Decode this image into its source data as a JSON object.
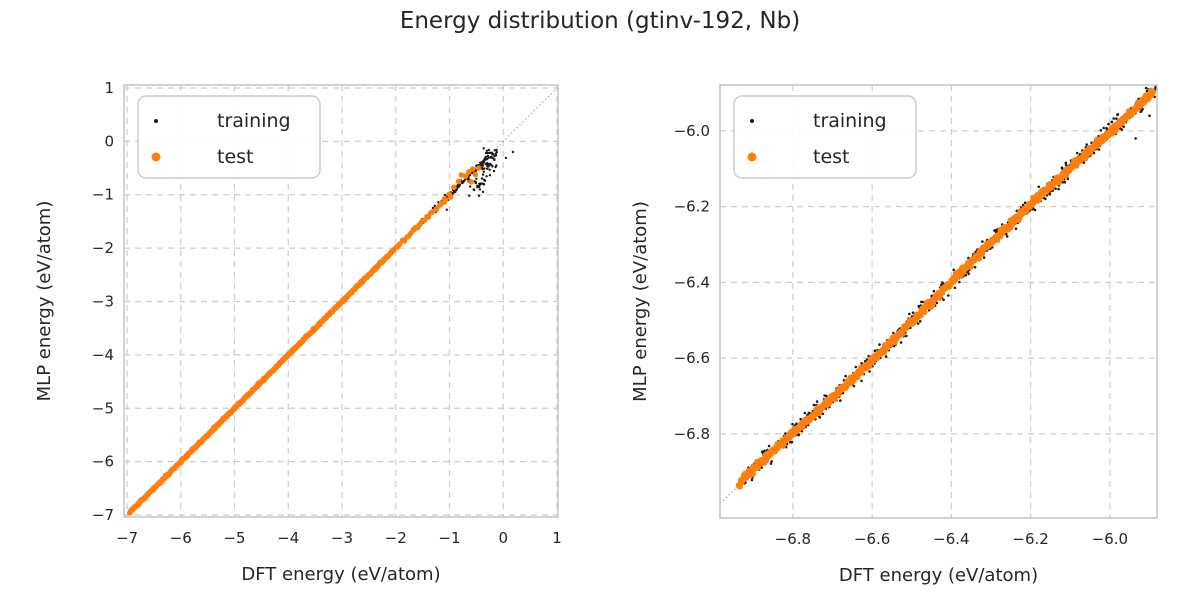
{
  "title": "Energy distribution (gtinv-192, Nb)",
  "colors": {
    "training": "#1a1a1a",
    "test": "#ff7f0e",
    "grid": "#cccccc",
    "spine": "#c8c8c8",
    "text": "#262626",
    "identity": "#999999",
    "background": "#ffffff",
    "legend_border": "#cccccc"
  },
  "chart_data": [
    {
      "type": "scatter",
      "xlabel": "DFT energy (eV/atom)",
      "ylabel": "MLP energy (eV/atom)",
      "xlim": [
        -7.056,
        1.019
      ],
      "ylim": [
        -7.037,
        1.056
      ],
      "xticks": {
        "values": [
          -7,
          -6,
          -5,
          -4,
          -3,
          -2,
          -1,
          0,
          1
        ],
        "labels": [
          "−7",
          "−6",
          "−5",
          "−4",
          "−3",
          "−2",
          "−1",
          "0",
          "1"
        ]
      },
      "yticks": {
        "values": [
          1,
          0,
          -1,
          -2,
          -3,
          -4,
          -5,
          -6,
          -7
        ],
        "labels": [
          "1",
          "0",
          "−1",
          "−2",
          "−3",
          "−4",
          "−5",
          "−6",
          "−7"
        ]
      },
      "grid": true,
      "identity_line": true,
      "legend": {
        "position": "upper left",
        "items": [
          {
            "label": "training",
            "series": "training"
          },
          {
            "label": "test",
            "series": "test"
          }
        ]
      },
      "series": [
        {
          "name": "training",
          "color_key": "training",
          "r": 1.2,
          "legend_r": 2.0,
          "segments": [
            {
              "kind": "diag",
              "from": -6.95,
              "to": -1.55,
              "n": 650,
              "noise": 0.012
            },
            {
              "kind": "diag",
              "from": -1.55,
              "to": -0.3,
              "n": 130,
              "noise": 0.03
            },
            {
              "kind": "cloud",
              "cx": -0.5,
              "cy": -0.8,
              "sx": 0.1,
              "sy": 0.1,
              "n": 28
            },
            {
              "kind": "cloud",
              "cx": -0.3,
              "cy": -0.48,
              "sx": 0.09,
              "sy": 0.07,
              "n": 30
            },
            {
              "kind": "cloud",
              "cx": -0.22,
              "cy": -0.26,
              "sx": 0.08,
              "sy": 0.06,
              "n": 25
            },
            {
              "kind": "points",
              "pts": [
                [
                  0.18,
                  -0.2
                ],
                [
                  0.05,
                  -0.31
                ],
                [
                  -0.45,
                  -1.02
                ],
                [
                  -1.05,
                  -1.28
                ]
              ]
            }
          ]
        },
        {
          "name": "test",
          "color_key": "test",
          "r": 2.8,
          "legend_r": 4.5,
          "segments": [
            {
              "kind": "diag",
              "from": -6.952,
              "to": -2.05,
              "n": 460,
              "noise": 0.01
            },
            {
              "kind": "diag",
              "from": -2.05,
              "to": -1.0,
              "n": 26,
              "noise": 0.025
            },
            {
              "kind": "points",
              "pts": [
                [
                  -0.92,
                  -0.86
                ],
                [
                  -0.83,
                  -0.75
                ],
                [
                  -0.78,
                  -0.63
                ],
                [
                  -0.7,
                  -0.65
                ],
                [
                  -0.64,
                  -0.57
                ],
                [
                  -0.57,
                  -0.52
                ],
                [
                  -0.52,
                  -0.62
                ],
                [
                  -0.46,
                  -0.5
                ],
                [
                  -0.6,
                  -0.76
                ],
                [
                  -0.98,
                  -1.04
                ],
                [
                  -1.1,
                  -1.14
                ]
              ]
            }
          ]
        }
      ]
    },
    {
      "type": "scatter",
      "xlabel": "DFT energy (eV/atom)",
      "ylabel": "MLP energy (eV/atom)",
      "xlim": [
        -6.984,
        -5.881
      ],
      "ylim": [
        -7.022,
        -5.879
      ],
      "xticks": {
        "values": [
          -6.8,
          -6.6,
          -6.4,
          -6.2,
          -6.0
        ],
        "labels": [
          "−6.8",
          "−6.6",
          "−6.4",
          "−6.2",
          "−6.0"
        ]
      },
      "yticks": {
        "values": [
          -6.0,
          -6.2,
          -6.4,
          -6.6,
          -6.8
        ],
        "labels": [
          "−6.0",
          "−6.2",
          "−6.4",
          "−6.6",
          "−6.8"
        ]
      },
      "grid": true,
      "identity_line": true,
      "legend": {
        "position": "upper left",
        "items": [
          {
            "label": "training",
            "series": "training"
          },
          {
            "label": "test",
            "series": "test"
          }
        ]
      },
      "series": [
        {
          "name": "training",
          "color_key": "training",
          "r": 1.3,
          "legend_r": 2.0,
          "segments": [
            {
              "kind": "diag",
              "from": -6.925,
              "to": -5.883,
              "n": 950,
              "noise": 0.011,
              "wiggle": {
                "amp": 0.006,
                "freq": 9,
                "phase": 1.2
              }
            },
            {
              "kind": "points",
              "pts": [
                [
                  -5.935,
                  -6.02
                ],
                [
                  -6.34,
                  -6.36
                ],
                [
                  -5.9,
                  -5.96
                ]
              ]
            }
          ]
        },
        {
          "name": "test",
          "color_key": "test",
          "r": 3.0,
          "legend_r": 4.5,
          "segments": [
            {
              "kind": "diag",
              "from": -6.938,
              "to": -5.89,
              "n": 780,
              "noise": 0.0045,
              "wiggle": {
                "amp": 0.006,
                "freq": 9,
                "phase": 1.2
              }
            }
          ]
        }
      ]
    }
  ]
}
